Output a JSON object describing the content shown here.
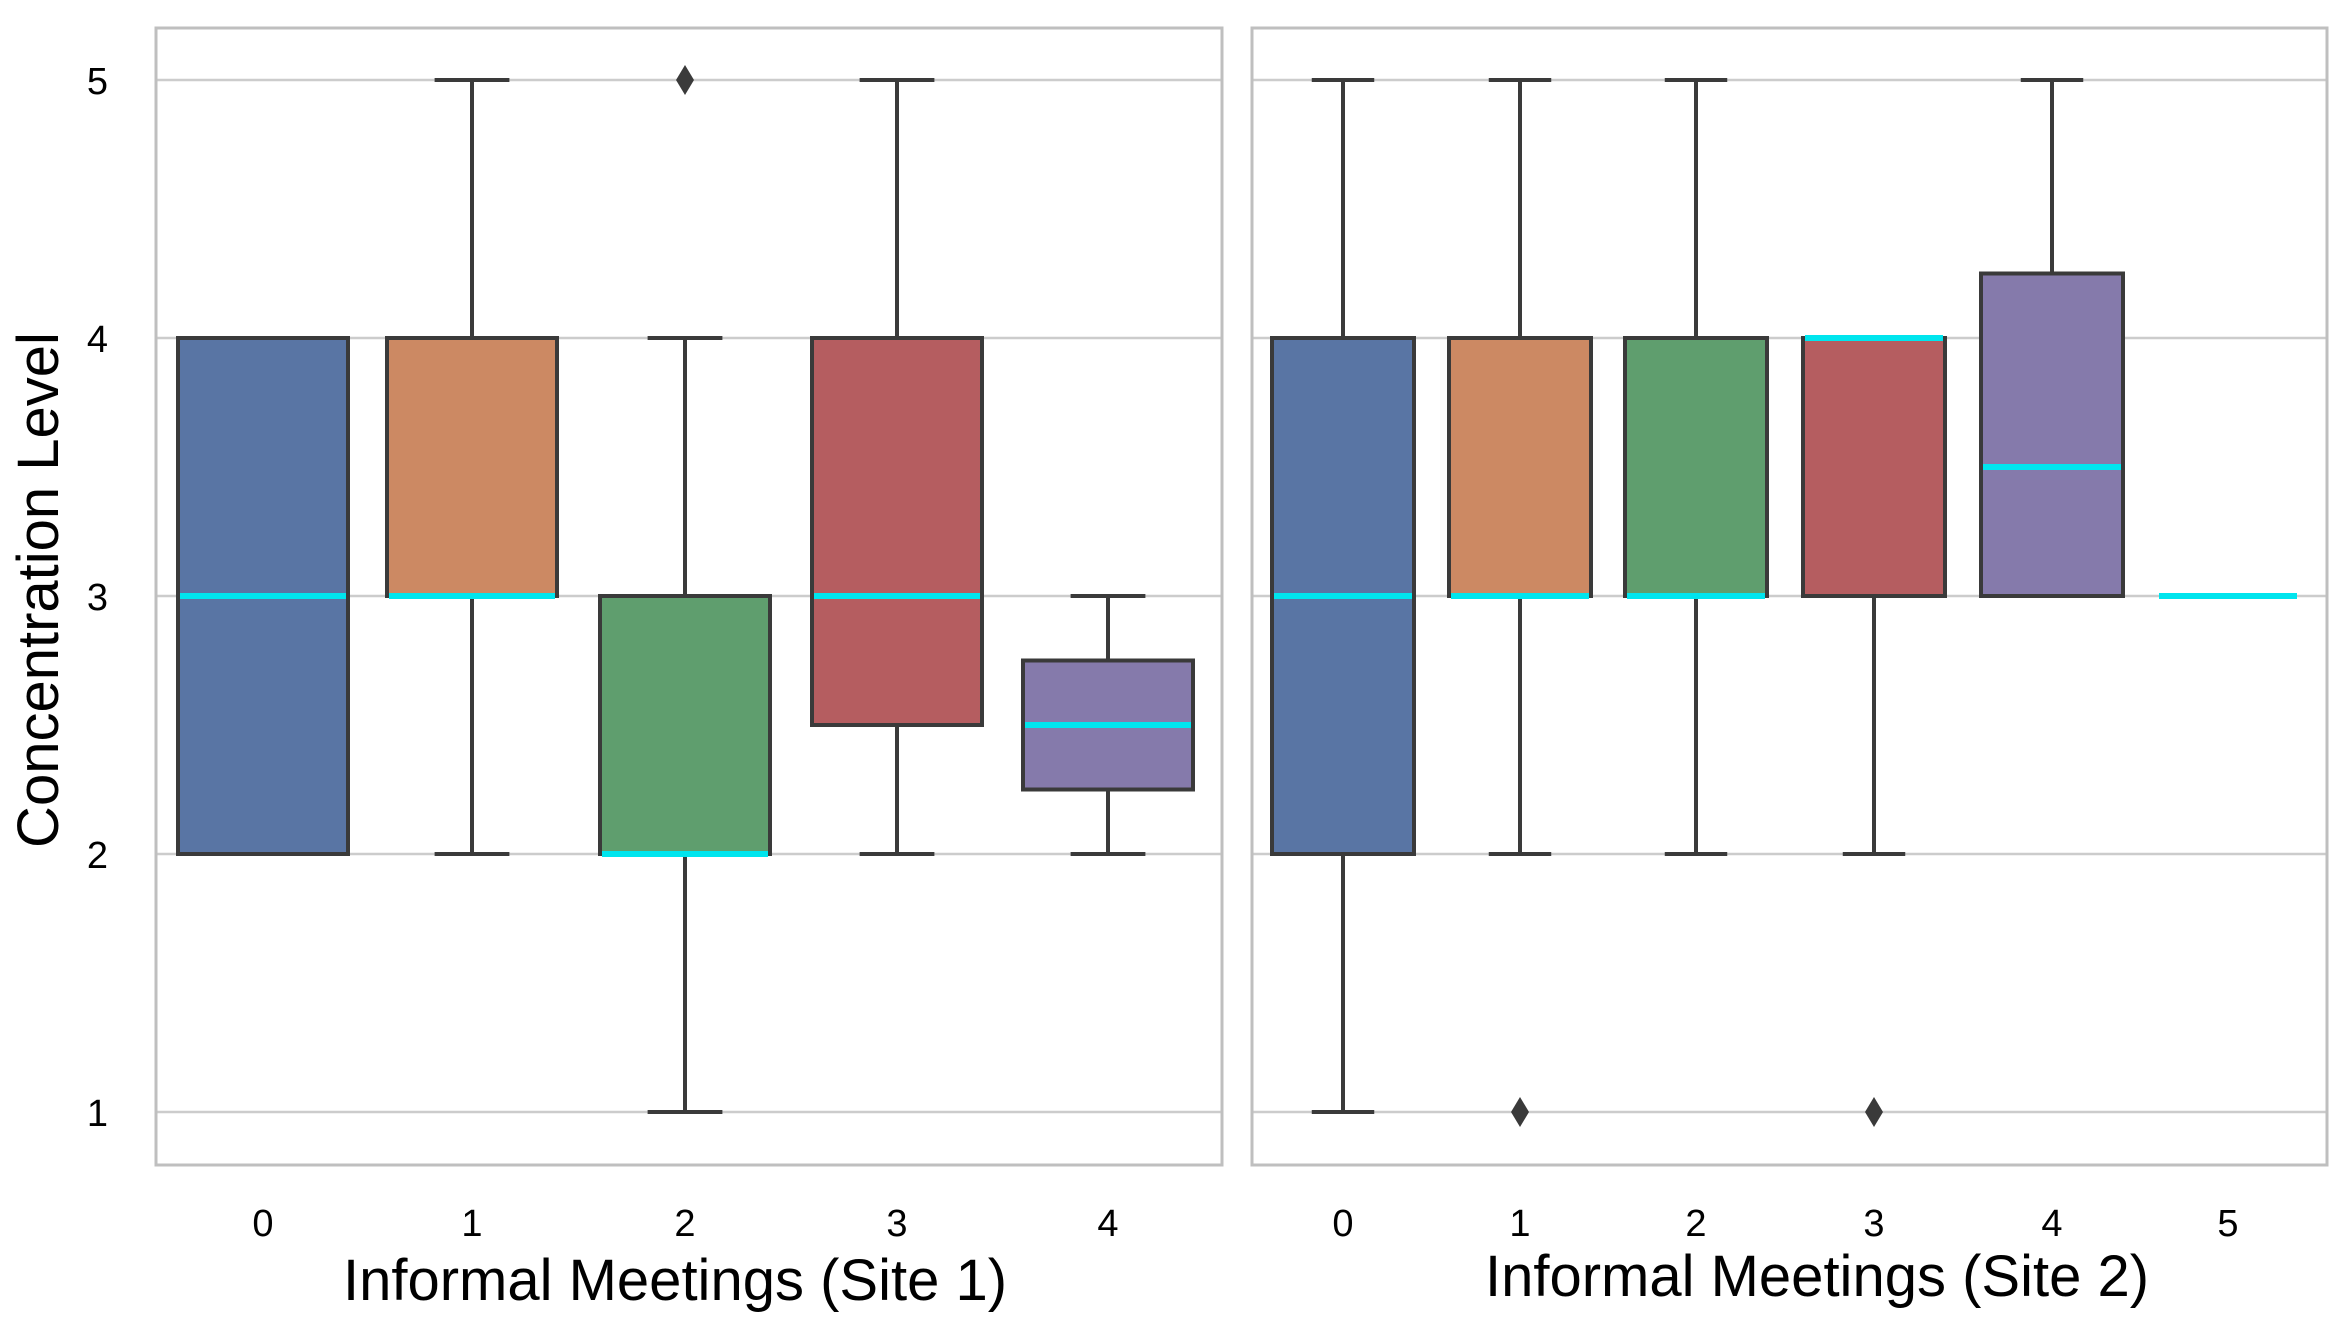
{
  "chart_data": [
    {
      "type": "box",
      "xlabel": "Informal Meetings (Site 1)",
      "ylabel": "Concentration Level",
      "ylim": [
        0.85,
        5.15
      ],
      "yticks": [
        1,
        2,
        3,
        4,
        5
      ],
      "grid": true,
      "categories": [
        "0",
        "1",
        "2",
        "3",
        "4"
      ],
      "boxes": [
        {
          "q1": 2,
          "median": 3,
          "q3": 4,
          "whisker_low": 2,
          "whisker_high": 4,
          "outliers": [],
          "color": "#5975a4"
        },
        {
          "q1": 3,
          "median": 3,
          "q3": 4,
          "whisker_low": 2,
          "whisker_high": 5,
          "outliers": [],
          "color": "#cc8963"
        },
        {
          "q1": 2,
          "median": 2,
          "q3": 3,
          "whisker_low": 1,
          "whisker_high": 4,
          "outliers": [
            5
          ],
          "color": "#5f9e6e"
        },
        {
          "q1": 2.5,
          "median": 3,
          "q3": 4,
          "whisker_low": 2,
          "whisker_high": 5,
          "outliers": [],
          "color": "#b55d60"
        },
        {
          "q1": 2.25,
          "median": 2.5,
          "q3": 2.75,
          "whisker_low": 2,
          "whisker_high": 3,
          "outliers": [],
          "color": "#857aab"
        }
      ]
    },
    {
      "type": "box",
      "xlabel": "Informal Meetings (Site 2)",
      "ylabel": "",
      "ylim": [
        0.85,
        5.15
      ],
      "yticks": [
        1,
        2,
        3,
        4,
        5
      ],
      "grid": true,
      "categories": [
        "0",
        "1",
        "2",
        "3",
        "4",
        "5"
      ],
      "boxes": [
        {
          "q1": 2,
          "median": 3,
          "q3": 4,
          "whisker_low": 1,
          "whisker_high": 5,
          "outliers": [],
          "color": "#5975a4"
        },
        {
          "q1": 3,
          "median": 3,
          "q3": 4,
          "whisker_low": 2,
          "whisker_high": 5,
          "outliers": [
            1
          ],
          "color": "#cc8963"
        },
        {
          "q1": 3,
          "median": 3,
          "q3": 4,
          "whisker_low": 2,
          "whisker_high": 5,
          "outliers": [],
          "color": "#5f9e6e"
        },
        {
          "q1": 3,
          "median": 4,
          "q3": 4,
          "whisker_low": 2,
          "whisker_high": 4,
          "outliers": [
            1
          ],
          "color": "#b55d60"
        },
        {
          "q1": 3,
          "median": 3.5,
          "q3": 4.25,
          "whisker_low": 3,
          "whisker_high": 5,
          "outliers": [],
          "color": "#857aab"
        },
        {
          "q1": 3,
          "median": 3,
          "q3": 3,
          "whisker_low": 3,
          "whisker_high": 3,
          "outliers": [],
          "color": "#8172b2"
        }
      ]
    }
  ],
  "colors": {
    "median": "#00e5ee",
    "line": "#3a3a3a",
    "grid": "#cccccc",
    "frame": "#bfbfbf"
  }
}
